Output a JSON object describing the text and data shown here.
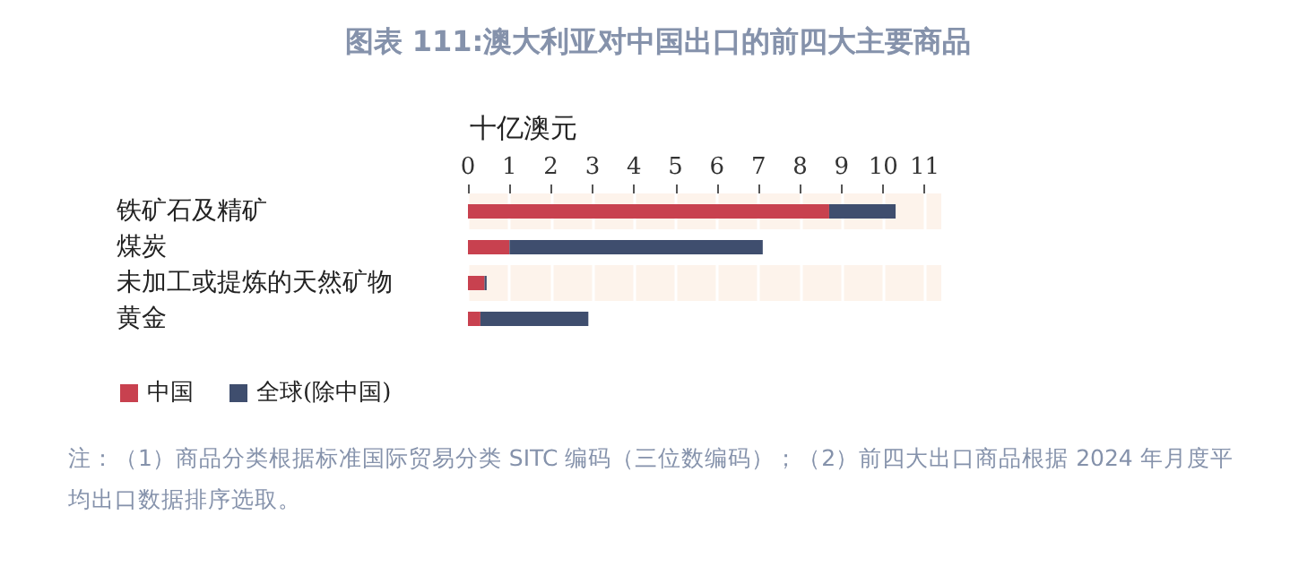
{
  "chart_data": {
    "type": "bar",
    "title": "图表 111:澳大利亚对中国出口的前四大主要商品",
    "xlabel": "十亿澳元",
    "orientation": "horizontal",
    "stacked": true,
    "categories": [
      "铁矿石及精矿",
      "煤炭",
      "未加工或提炼的天然矿物",
      "黄金"
    ],
    "series": [
      {
        "name": "中国",
        "color": "#c8414f",
        "values": [
          8.7,
          1.0,
          0.4,
          0.3
        ]
      },
      {
        "name": "全球(除中国)",
        "color": "#3f4e6e",
        "values": [
          1.6,
          6.1,
          0.05,
          2.6
        ]
      }
    ],
    "xlim": [
      0,
      11.4
    ],
    "xticks": [
      0,
      1,
      2,
      3,
      4,
      5,
      6,
      7,
      8,
      9,
      10,
      11
    ],
    "grid": "x",
    "legend": "bottom left",
    "annotations": [
      "注：（1）商品分类根据标准国际贸易分类 SITC 编码（三位数编码）；（2）前四大出口商品根据 2024 年月度平均出口数据排序选取。"
    ]
  }
}
